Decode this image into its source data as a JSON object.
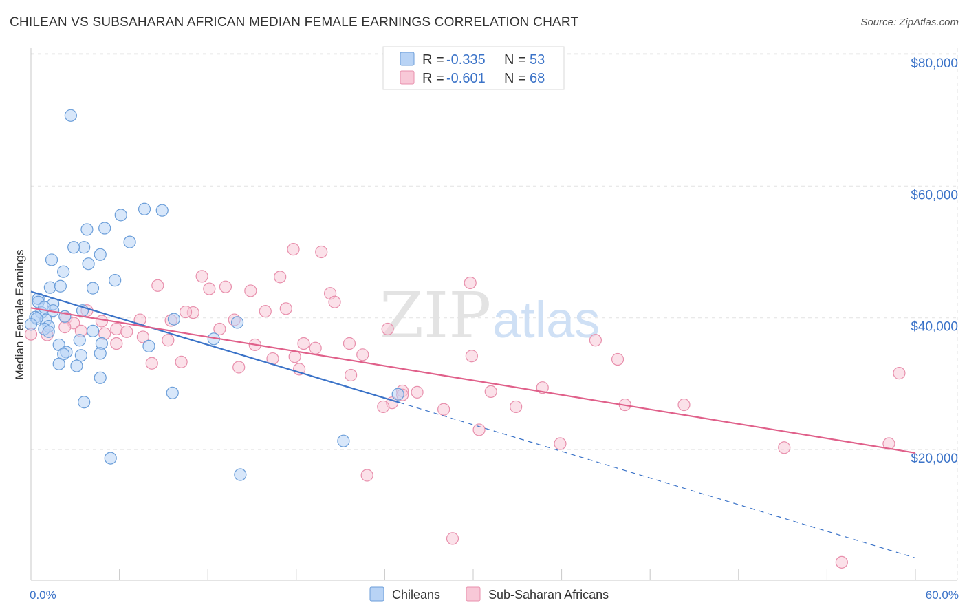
{
  "title": "CHILEAN VS SUBSAHARAN AFRICAN MEDIAN FEMALE EARNINGS CORRELATION CHART",
  "source": "Source: ZipAtlas.com",
  "watermark": {
    "zip": "ZIP",
    "atlas": "atlas"
  },
  "colors": {
    "blue_fill": "#b8d3f5",
    "blue_stroke": "#6b9ed9",
    "blue_line": "#3b73c8",
    "pink_fill": "#f8c8d7",
    "pink_stroke": "#e88fac",
    "pink_line": "#e0608a",
    "grid": "#e2e2e2",
    "axis_text": "#3b73c8"
  },
  "legend": {
    "rows": [
      {
        "r_label": "R =",
        "r_value": "-0.335",
        "n_label": "N =",
        "n_value": "53"
      },
      {
        "r_label": "R =",
        "r_value": "-0.601",
        "n_label": "N =",
        "n_value": "68"
      }
    ]
  },
  "bottom_legend": [
    "Chileans",
    "Sub-Saharan Africans"
  ],
  "chart_data": {
    "type": "scatter",
    "title": "CHILEAN VS SUBSAHARAN AFRICAN MEDIAN FEMALE EARNINGS CORRELATION CHART",
    "xlabel": "",
    "ylabel": "Median Female Earnings",
    "xlim": [
      0,
      60
    ],
    "ylim": [
      0,
      84000
    ],
    "x_tick_labels": [
      "0.0%",
      "60.0%"
    ],
    "y_ticks": [
      20000,
      40000,
      60000,
      80000
    ],
    "y_tick_labels": [
      "$20,000",
      "$40,000",
      "$60,000",
      "$80,000"
    ],
    "grid": true,
    "series": [
      {
        "name": "Chileans",
        "r": -0.335,
        "n": 53,
        "trend": {
          "x0": 0,
          "y0": 43990,
          "x1": 25.0,
          "y1": 27140,
          "dashed_to_x": 60,
          "dashed_to_y": 3560
        },
        "points": [
          [
            2.7,
            70700
          ],
          [
            7.7,
            56500
          ],
          [
            8.9,
            56300
          ],
          [
            6.1,
            55600
          ],
          [
            3.8,
            53400
          ],
          [
            5.0,
            53600
          ],
          [
            6.7,
            51500
          ],
          [
            3.6,
            50700
          ],
          [
            2.9,
            50700
          ],
          [
            4.7,
            49600
          ],
          [
            3.9,
            48200
          ],
          [
            1.4,
            48800
          ],
          [
            2.2,
            47000
          ],
          [
            5.7,
            45700
          ],
          [
            1.3,
            44600
          ],
          [
            2.0,
            44800
          ],
          [
            4.2,
            44500
          ],
          [
            0.5,
            42900
          ],
          [
            1.5,
            42100
          ],
          [
            0.5,
            42400
          ],
          [
            3.5,
            41100
          ],
          [
            1.5,
            41100
          ],
          [
            0.7,
            40800
          ],
          [
            0.3,
            40100
          ],
          [
            1.0,
            39700
          ],
          [
            0.4,
            39900
          ],
          [
            2.3,
            40200
          ],
          [
            9.7,
            39800
          ],
          [
            14.0,
            39300
          ],
          [
            1.2,
            38700
          ],
          [
            0.9,
            38300
          ],
          [
            4.2,
            38000
          ],
          [
            1.2,
            37900
          ],
          [
            3.3,
            36600
          ],
          [
            1.9,
            35900
          ],
          [
            4.8,
            36100
          ],
          [
            8.0,
            35700
          ],
          [
            12.4,
            36800
          ],
          [
            2.4,
            34800
          ],
          [
            4.7,
            34600
          ],
          [
            2.2,
            34500
          ],
          [
            3.4,
            34300
          ],
          [
            1.9,
            33000
          ],
          [
            3.1,
            32700
          ],
          [
            4.7,
            30900
          ],
          [
            9.6,
            28600
          ],
          [
            24.9,
            28400
          ],
          [
            3.6,
            27200
          ],
          [
            21.2,
            21300
          ],
          [
            5.4,
            18700
          ],
          [
            14.2,
            16200
          ],
          [
            0.0,
            39000
          ],
          [
            0.9,
            41600
          ]
        ]
      },
      {
        "name": "Sub-Saharan Africans",
        "r": -0.601,
        "n": 68,
        "trend": {
          "x0": 0,
          "y0": 41500,
          "x1": 60,
          "y1": 19500
        },
        "points": [
          [
            17.8,
            50400
          ],
          [
            19.7,
            50000
          ],
          [
            11.6,
            46300
          ],
          [
            16.9,
            46200
          ],
          [
            29.8,
            45300
          ],
          [
            8.6,
            44900
          ],
          [
            13.2,
            44700
          ],
          [
            12.1,
            44400
          ],
          [
            14.9,
            44100
          ],
          [
            20.3,
            43700
          ],
          [
            20.6,
            42400
          ],
          [
            17.3,
            41400
          ],
          [
            15.9,
            41000
          ],
          [
            11.0,
            40800
          ],
          [
            10.5,
            40900
          ],
          [
            3.8,
            41100
          ],
          [
            2.4,
            40000
          ],
          [
            4.8,
            39500
          ],
          [
            7.4,
            39700
          ],
          [
            9.5,
            39600
          ],
          [
            13.8,
            39700
          ],
          [
            2.9,
            39200
          ],
          [
            2.3,
            38600
          ],
          [
            5.8,
            38300
          ],
          [
            12.8,
            38300
          ],
          [
            24.2,
            38300
          ],
          [
            3.4,
            38000
          ],
          [
            6.5,
            37900
          ],
          [
            5.0,
            37600
          ],
          [
            0.0,
            37500
          ],
          [
            1.1,
            37400
          ],
          [
            7.6,
            37100
          ],
          [
            9.3,
            36600
          ],
          [
            18.5,
            36100
          ],
          [
            21.6,
            36100
          ],
          [
            5.8,
            36100
          ],
          [
            15.2,
            35900
          ],
          [
            38.3,
            36600
          ],
          [
            19.3,
            35400
          ],
          [
            17.9,
            34100
          ],
          [
            22.5,
            34400
          ],
          [
            29.9,
            34200
          ],
          [
            39.8,
            33700
          ],
          [
            10.2,
            33300
          ],
          [
            8.2,
            33100
          ],
          [
            16.4,
            33800
          ],
          [
            14.1,
            32500
          ],
          [
            18.2,
            32200
          ],
          [
            21.7,
            31300
          ],
          [
            58.9,
            31600
          ],
          [
            34.7,
            29400
          ],
          [
            25.2,
            28900
          ],
          [
            26.2,
            28700
          ],
          [
            31.2,
            28800
          ],
          [
            25.2,
            28300
          ],
          [
            24.5,
            27100
          ],
          [
            40.3,
            26800
          ],
          [
            44.3,
            26800
          ],
          [
            23.9,
            26500
          ],
          [
            32.9,
            26500
          ],
          [
            28.0,
            26100
          ],
          [
            30.4,
            23000
          ],
          [
            35.9,
            20900
          ],
          [
            51.1,
            20300
          ],
          [
            58.2,
            20900
          ],
          [
            22.8,
            16100
          ],
          [
            28.6,
            6500
          ],
          [
            55.0,
            2900
          ]
        ]
      }
    ]
  }
}
